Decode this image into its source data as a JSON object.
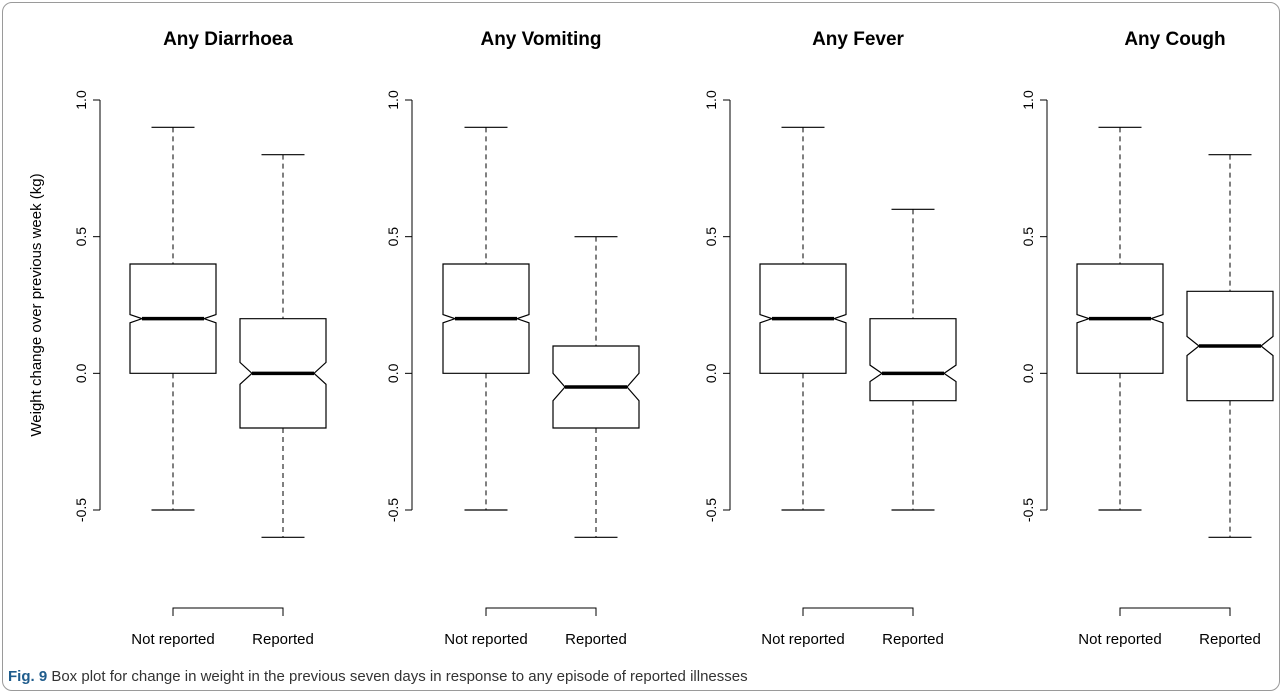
{
  "chart_data": {
    "type": "box",
    "ylabel": "Weight change over previous week (kg)",
    "ylim": [
      -0.5,
      1.0
    ],
    "yticks": [
      -0.5,
      0.0,
      0.5,
      1.0
    ],
    "ytick_labels": [
      "-0.5",
      "0.0",
      "0.5",
      "1.0"
    ],
    "notched": true,
    "panels": [
      {
        "title": "Any Diarrhoea",
        "categories": [
          "Not reported",
          "Reported"
        ],
        "boxes": [
          {
            "min": -0.5,
            "q1": 0.0,
            "median": 0.2,
            "q3": 0.4,
            "max": 0.9,
            "notch_low": 0.185,
            "notch_high": 0.215
          },
          {
            "min": -0.6,
            "q1": -0.2,
            "median": 0.0,
            "q3": 0.2,
            "max": 0.8,
            "notch_low": -0.04,
            "notch_high": 0.04
          }
        ]
      },
      {
        "title": "Any Vomiting",
        "categories": [
          "Not reported",
          "Reported"
        ],
        "boxes": [
          {
            "min": -0.5,
            "q1": 0.0,
            "median": 0.2,
            "q3": 0.4,
            "max": 0.9,
            "notch_low": 0.185,
            "notch_high": 0.215
          },
          {
            "min": -0.6,
            "q1": -0.2,
            "median": -0.05,
            "q3": 0.1,
            "max": 0.5,
            "notch_low": -0.1,
            "notch_high": 0.0
          }
        ]
      },
      {
        "title": "Any Fever",
        "categories": [
          "Not reported",
          "Reported"
        ],
        "boxes": [
          {
            "min": -0.5,
            "q1": 0.0,
            "median": 0.2,
            "q3": 0.4,
            "max": 0.9,
            "notch_low": 0.185,
            "notch_high": 0.215
          },
          {
            "min": -0.5,
            "q1": -0.1,
            "median": 0.0,
            "q3": 0.2,
            "max": 0.6,
            "notch_low": -0.03,
            "notch_high": 0.03
          }
        ]
      },
      {
        "title": "Any Cough",
        "categories": [
          "Not reported",
          "Reported"
        ],
        "boxes": [
          {
            "min": -0.5,
            "q1": 0.0,
            "median": 0.2,
            "q3": 0.4,
            "max": 0.9,
            "notch_low": 0.185,
            "notch_high": 0.215
          },
          {
            "min": -0.6,
            "q1": -0.1,
            "median": 0.1,
            "q3": 0.3,
            "max": 0.8,
            "notch_low": 0.065,
            "notch_high": 0.135
          }
        ]
      }
    ]
  },
  "caption": {
    "label": "Fig. 9",
    "text": " Box plot for change in weight in the previous seven days in response to any episode of reported illnesses"
  }
}
